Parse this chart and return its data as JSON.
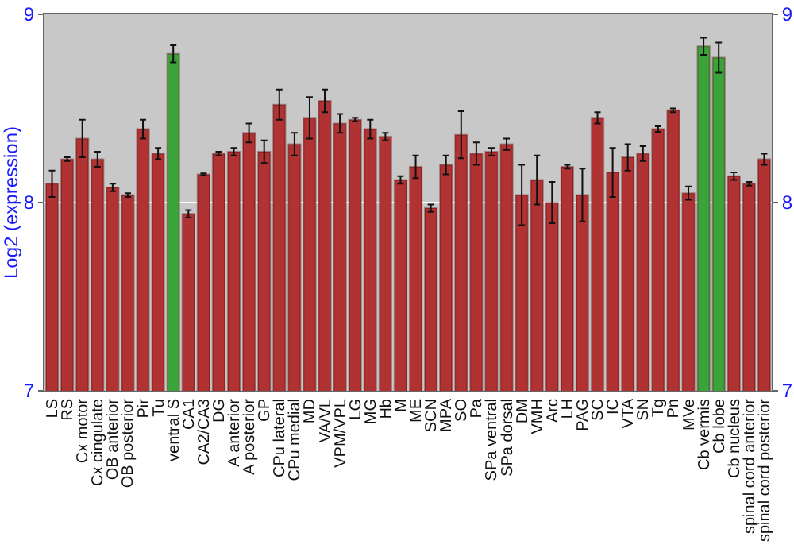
{
  "chart_data": {
    "type": "bar",
    "ylabel": "Log2 (expression)",
    "categories": [
      "LS",
      "RS",
      "Cx motor",
      "Cx cingulate",
      "OB anterior",
      "OB posterior",
      "Pir",
      "Tu",
      "ventral S",
      "CA1",
      "CA2/CA3",
      "DG",
      "A anterior",
      "A posterior",
      "GP",
      "CPu lateral",
      "CPu medial",
      "MD",
      "VA/VL",
      "VPM/VPL",
      "LG",
      "MG",
      "Hb",
      "M",
      "ME",
      "SCN",
      "MPA",
      "SO",
      "Pa",
      "SPa ventral",
      "SPa dorsal",
      "DM",
      "VMH",
      "Arc",
      "LH",
      "PAG",
      "SC",
      "IC",
      "VTA",
      "SN",
      "Tg",
      "Pn",
      "MVe",
      "Cb vermis",
      "Cb lobe",
      "Cb nucleus",
      "spinal cord anterior",
      "spinal cord posterior"
    ],
    "values": [
      8.1,
      8.23,
      8.34,
      8.23,
      8.08,
      8.04,
      8.39,
      8.26,
      8.79,
      7.94,
      8.15,
      8.26,
      8.27,
      8.37,
      8.27,
      8.52,
      8.31,
      8.45,
      8.54,
      8.42,
      8.44,
      8.39,
      8.35,
      8.12,
      8.19,
      7.97,
      8.2,
      8.36,
      8.26,
      8.27,
      8.31,
      8.04,
      8.12,
      8.0,
      8.19,
      8.04,
      8.45,
      8.16,
      8.24,
      8.26,
      8.39,
      8.49,
      8.05,
      8.83,
      8.77,
      8.14,
      8.1,
      8.23
    ],
    "errors": [
      0.07,
      0.01,
      0.1,
      0.04,
      0.02,
      0.01,
      0.05,
      0.03,
      0.045,
      0.02,
      0.005,
      0.01,
      0.02,
      0.05,
      0.06,
      0.08,
      0.06,
      0.11,
      0.06,
      0.05,
      0.01,
      0.05,
      0.02,
      0.02,
      0.06,
      0.02,
      0.05,
      0.125,
      0.06,
      0.02,
      0.03,
      0.16,
      0.13,
      0.11,
      0.01,
      0.14,
      0.03,
      0.13,
      0.07,
      0.04,
      0.015,
      0.01,
      0.035,
      0.045,
      0.08,
      0.02,
      0.01,
      0.03
    ],
    "colors": [
      "#b03232",
      "#b03232",
      "#b03232",
      "#b03232",
      "#b03232",
      "#b03232",
      "#b03232",
      "#b03232",
      "#3aa33a",
      "#b03232",
      "#b03232",
      "#b03232",
      "#b03232",
      "#b03232",
      "#b03232",
      "#b03232",
      "#b03232",
      "#b03232",
      "#b03232",
      "#b03232",
      "#b03232",
      "#b03232",
      "#b03232",
      "#b03232",
      "#b03232",
      "#b03232",
      "#b03232",
      "#b03232",
      "#b03232",
      "#b03232",
      "#b03232",
      "#b03232",
      "#b03232",
      "#b03232",
      "#b03232",
      "#b03232",
      "#b03232",
      "#b03232",
      "#b03232",
      "#b03232",
      "#b03232",
      "#b03232",
      "#b03232",
      "#3aa33a",
      "#3aa33a",
      "#b03232",
      "#b03232",
      "#b03232"
    ],
    "ylim": [
      7,
      9
    ],
    "yticks": [
      7,
      8,
      9
    ],
    "y2lim": [
      7,
      9
    ],
    "y2ticks": [
      7,
      8,
      9
    ],
    "grid": "y"
  }
}
